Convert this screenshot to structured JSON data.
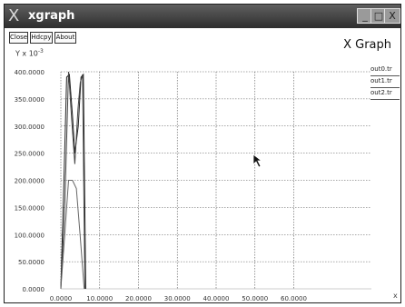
{
  "window": {
    "title": "xgraph",
    "app_icon": "X",
    "controls": {
      "minimize": "_",
      "maximize": "□",
      "close": "X"
    }
  },
  "toolbar": {
    "close_label": "Close",
    "hdcpy_label": "Hdcpy",
    "about_label": "About"
  },
  "header": {
    "title": "X Graph"
  },
  "y_axis_label": {
    "text": "Y x 10",
    "exponent": "-3"
  },
  "legend": [
    "out0.tr",
    "out1.tr",
    "out2.tr"
  ],
  "chart_data": {
    "type": "line",
    "title": "X Graph",
    "ylabel": "Y x 10^-3",
    "xlabel": "",
    "xlim": [
      0,
      80
    ],
    "ylim": [
      0,
      400
    ],
    "grid": true,
    "legend_position": "top-right",
    "x_ticks": [
      "0.0000",
      "10.0000",
      "20.0000",
      "30.0000",
      "40.0000",
      "50.0000",
      "60.0000"
    ],
    "y_ticks": [
      "0.0000",
      "50.0000",
      "100.0000",
      "150.0000",
      "200.0000",
      "250.0000",
      "300.0000",
      "350.0000",
      "400.0000"
    ],
    "series": [
      {
        "name": "out0.tr",
        "color": "#222222",
        "x": [
          0.0,
          0.8,
          1.5,
          2.2,
          3.0,
          3.6,
          4.5,
          5.2,
          5.8,
          6.4
        ],
        "y": [
          0,
          200,
          390,
          395,
          320,
          250,
          300,
          390,
          395,
          0
        ]
      },
      {
        "name": "out1.tr",
        "color": "#444444",
        "x": [
          0.0,
          1.0,
          2.0,
          2.8,
          3.6,
          4.4,
          5.0,
          5.6,
          6.2
        ],
        "y": [
          0,
          150,
          400,
          310,
          230,
          330,
          380,
          395,
          0
        ]
      },
      {
        "name": "out2.tr",
        "color": "#666666",
        "x": [
          0.0,
          1.0,
          2.0,
          3.0,
          4.0,
          5.0,
          6.0
        ],
        "y": [
          0,
          100,
          200,
          200,
          185,
          95,
          0
        ]
      }
    ]
  },
  "corner_mark": "x"
}
